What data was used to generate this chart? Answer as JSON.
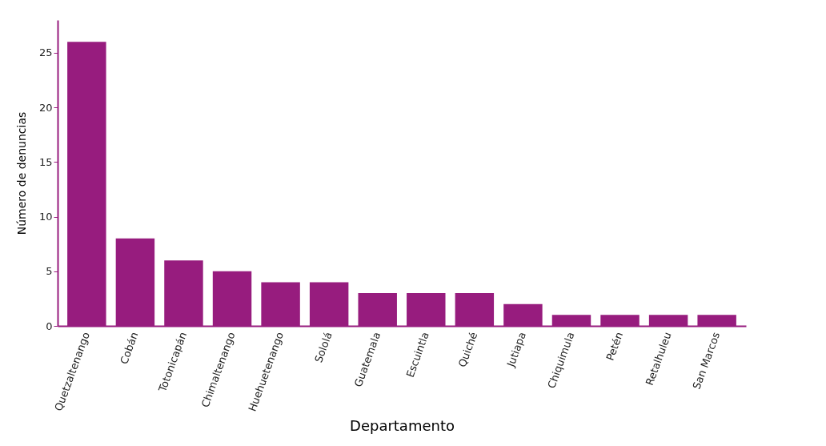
{
  "chart_data": {
    "type": "bar",
    "xlabel": "Departamento",
    "ylabel": "Número de denuncias",
    "categories": [
      "Quetzaltenango",
      "Cobán",
      "Totonicapán",
      "Chimaltenango",
      "Huehuetenango",
      "Sololá",
      "Guatemala",
      "Escuintla",
      "Quiché",
      "Jutiapa",
      "Chiquimula",
      "Petén",
      "Retalhuleu",
      "San Marcos"
    ],
    "values": [
      26,
      8,
      6,
      5,
      4,
      4,
      3,
      3,
      3,
      2,
      1,
      1,
      1,
      1
    ],
    "color": "#971c7e",
    "ylim": [
      0,
      28
    ],
    "yticks": [
      0,
      5,
      10,
      15,
      20,
      25
    ],
    "grid": false
  }
}
